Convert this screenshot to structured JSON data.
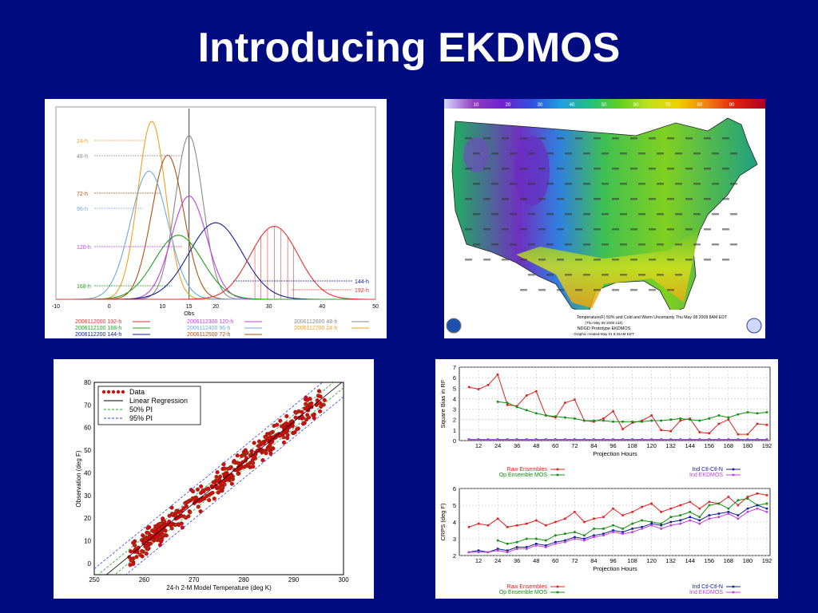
{
  "slide": {
    "title": "Introducing EKDMOS"
  },
  "colors": {
    "background": "#000c80",
    "title": "#ffffff"
  },
  "chart_data": [
    {
      "type": "line",
      "subtype": "probability-density-curves",
      "xlabel": "Obs",
      "xlim": [
        -10,
        50
      ],
      "xticks": [
        -10,
        0,
        10,
        15,
        20,
        30,
        40,
        50
      ],
      "observed_value": 15,
      "series": [
        {
          "label": "24-h",
          "legend": "2006112700 24-h",
          "color": "#f0a020",
          "mean": 8,
          "sd": 2.6,
          "peak": 1.0
        },
        {
          "label": "48-h",
          "legend": "2006112600 48-h",
          "color": "#888888",
          "mean": 15,
          "sd": 2.6,
          "peak": 0.92
        },
        {
          "label": "72-h",
          "legend": "2006112500 72-h",
          "color": "#b05010",
          "mean": 11,
          "sd": 3.0,
          "peak": 0.81
        },
        {
          "label": "96-h",
          "legend": "2006112400 96-h",
          "color": "#70a8e0",
          "mean": 7.5,
          "sd": 3.5,
          "peak": 0.72
        },
        {
          "label": "120-h",
          "legend": "2006112300 120-h",
          "color": "#c040e0",
          "mean": 15,
          "sd": 3.3,
          "peak": 0.58
        },
        {
          "label": "144-h",
          "legend": "2006112200 144-h",
          "color": "#102090",
          "mean": 20,
          "sd": 5.0,
          "peak": 0.43
        },
        {
          "label": "168-h",
          "legend": "2006112100 168-h",
          "color": "#20a020",
          "mean": 13,
          "sd": 4.5,
          "peak": 0.36
        },
        {
          "label": "192-h",
          "legend": "2006112000 192-h",
          "color": "#e03030",
          "mean": 31,
          "sd": 4.5,
          "peak": 0.41
        }
      ]
    },
    {
      "type": "heatmap",
      "subtype": "map",
      "colorbar_ticks": [
        "10",
        "20",
        "30",
        "40",
        "50",
        "60",
        "70",
        "80",
        "90"
      ],
      "caption_lines": [
        "Temperature(F) 50% and Cold and Warm Uncertainty Thu May 08 2008  8AM EDT",
        "(Thu May 08 2008 12Z)",
        "NDGD Prototype EKDMOS",
        "Graphic created-May 01  8:34AM EDT"
      ],
      "colors": [
        "#d8d8ff",
        "#9040c0",
        "#7020d0",
        "#3050e0",
        "#20a0e0",
        "#20c080",
        "#60d020",
        "#c0e020",
        "#f0d000",
        "#f08010",
        "#e02010",
        "#b00020"
      ]
    },
    {
      "type": "scatter",
      "xlabel": "24-h 2-M Model Temperature (deg K)",
      "ylabel": "Observation (deg F)",
      "xlim": [
        250,
        300
      ],
      "ylim": [
        -5,
        80
      ],
      "xticks": [
        250,
        260,
        270,
        280,
        290,
        300
      ],
      "yticks": [
        0,
        10,
        20,
        30,
        40,
        50,
        60,
        70,
        80
      ],
      "legend": [
        "Data",
        "Linear Regression",
        "50% PI",
        "95% PI"
      ],
      "legend_position": "top-left",
      "regression": {
        "slope": 1.8,
        "intercept": -459.4
      },
      "pi50_halfwidth": 3.0,
      "pi95_halfwidth": 7.0
    },
    {
      "type": "line",
      "xlabel": "Projection Hours",
      "ylabel": "Square Bias in RF",
      "ylim": [
        0,
        7
      ],
      "yticks": [
        0,
        1,
        2,
        3,
        4,
        5,
        6,
        7
      ],
      "xlim": [
        0,
        194
      ],
      "xticks": [
        12,
        24,
        36,
        48,
        60,
        72,
        84,
        96,
        108,
        120,
        132,
        144,
        156,
        168,
        180,
        192
      ],
      "legend": [
        "Raw Ensembles",
        "Op Ensemble MOS",
        "Ind Ctl-Ctl-N",
        "Ind EKDMOS"
      ],
      "series": [
        {
          "name": "Raw Ensembles",
          "color": "#e02020",
          "x": [
            6,
            12,
            18,
            24,
            30,
            36,
            42,
            48,
            54,
            60,
            66,
            72,
            78,
            84,
            90,
            96,
            102,
            108,
            114,
            120,
            126,
            132,
            138,
            144,
            150,
            156,
            162,
            168,
            174,
            180,
            186,
            192
          ],
          "values": [
            5.1,
            4.9,
            5.3,
            6.3,
            3.4,
            3.3,
            4.3,
            4.7,
            2.4,
            2.2,
            3.6,
            3.9,
            1.9,
            1.8,
            2.1,
            2.8,
            1.1,
            1.7,
            1.9,
            2.4,
            1.0,
            0.9,
            1.9,
            2.1,
            0.8,
            0.7,
            1.6,
            2.0,
            0.6,
            0.6,
            1.6,
            1.5
          ]
        },
        {
          "name": "Op Ensemble MOS",
          "color": "#109010",
          "x": [
            24,
            30,
            36,
            42,
            48,
            54,
            60,
            66,
            72,
            78,
            84,
            90,
            96,
            102,
            108,
            114,
            120,
            126,
            132,
            138,
            144,
            150,
            156,
            162,
            168,
            174,
            180,
            186,
            192
          ],
          "values": [
            3.7,
            3.6,
            3.2,
            2.9,
            2.6,
            2.4,
            2.3,
            2.2,
            2.1,
            1.9,
            1.9,
            1.9,
            1.8,
            1.8,
            1.8,
            1.8,
            1.9,
            1.9,
            2.0,
            2.1,
            2.0,
            1.9,
            2.1,
            2.4,
            2.2,
            2.5,
            2.7,
            2.6,
            2.7
          ]
        },
        {
          "name": "Ind Ctl-Ctl-N",
          "color": "#102090",
          "x": [
            6,
            12,
            18,
            24,
            30,
            36,
            42,
            48,
            54,
            60,
            66,
            72,
            78,
            84,
            90,
            96,
            102,
            108,
            114,
            120,
            126,
            132,
            138,
            144,
            150,
            156,
            162,
            168,
            174,
            180,
            186,
            192
          ],
          "values": [
            0.1,
            0.1,
            0.1,
            0.1,
            0.1,
            0.1,
            0.1,
            0.1,
            0.1,
            0.1,
            0.1,
            0.1,
            0.1,
            0.1,
            0.1,
            0.1,
            0.1,
            0.1,
            0.1,
            0.1,
            0.1,
            0.1,
            0.1,
            0.1,
            0.1,
            0.1,
            0.1,
            0.1,
            0.1,
            0.1,
            0.1,
            0.1
          ]
        },
        {
          "name": "Ind EKDMOS",
          "color": "#c040e0",
          "x": [
            6,
            12,
            18,
            24,
            30,
            36,
            42,
            48,
            54,
            60,
            66,
            72,
            78,
            84,
            90,
            96,
            102,
            108,
            114,
            120,
            126,
            132,
            138,
            144,
            150,
            156,
            162,
            168,
            174,
            180,
            186,
            192
          ],
          "values": [
            0.05,
            0.05,
            0.05,
            0.05,
            0.05,
            0.05,
            0.05,
            0.05,
            0.05,
            0.05,
            0.05,
            0.05,
            0.05,
            0.05,
            0.05,
            0.05,
            0.05,
            0.05,
            0.05,
            0.05,
            0.05,
            0.05,
            0.05,
            0.05,
            0.05,
            0.05,
            0.05,
            0.05,
            0.05,
            0.05,
            0.05,
            0.05
          ]
        }
      ]
    },
    {
      "type": "line",
      "xlabel": "Projection Hours",
      "ylabel": "CRPS (deg F)",
      "ylim": [
        2,
        6
      ],
      "yticks": [
        2,
        3,
        4,
        5,
        6
      ],
      "xlim": [
        0,
        194
      ],
      "xticks": [
        12,
        24,
        36,
        48,
        60,
        72,
        84,
        96,
        108,
        120,
        132,
        144,
        156,
        168,
        180,
        192
      ],
      "legend": [
        "Raw Ensembles",
        "Op Ensemble MOS",
        "Ind Ctl-Ctl-N",
        "Ind EKDMOS"
      ],
      "series": [
        {
          "name": "Raw Ensembles",
          "color": "#e02020",
          "x": [
            6,
            12,
            18,
            24,
            30,
            36,
            42,
            48,
            54,
            60,
            66,
            72,
            78,
            84,
            90,
            96,
            102,
            108,
            114,
            120,
            126,
            132,
            138,
            144,
            150,
            156,
            162,
            168,
            174,
            180,
            186,
            192
          ],
          "values": [
            3.7,
            3.9,
            3.8,
            4.2,
            3.7,
            3.8,
            3.9,
            4.1,
            3.8,
            4.0,
            4.2,
            4.6,
            4.0,
            4.2,
            4.3,
            4.8,
            4.4,
            4.6,
            4.9,
            5.1,
            4.6,
            4.8,
            5.0,
            5.2,
            4.8,
            5.2,
            5.1,
            5.5,
            5.0,
            5.5,
            5.7,
            5.6
          ]
        },
        {
          "name": "Op Ensemble MOS",
          "color": "#109010",
          "x": [
            24,
            30,
            36,
            42,
            48,
            54,
            60,
            66,
            72,
            78,
            84,
            90,
            96,
            102,
            108,
            114,
            120,
            126,
            132,
            138,
            144,
            150,
            156,
            162,
            168,
            174,
            180,
            186,
            192
          ],
          "values": [
            2.9,
            2.7,
            2.8,
            3.0,
            3.0,
            2.9,
            3.2,
            3.3,
            3.4,
            3.2,
            3.6,
            3.6,
            3.8,
            3.6,
            3.9,
            4.1,
            4.0,
            3.9,
            4.3,
            4.4,
            4.6,
            4.3,
            5.0,
            5.1,
            4.8,
            5.3,
            5.4,
            5.0,
            5.1
          ]
        },
        {
          "name": "Ind Ctl-Ctl-N",
          "color": "#102090",
          "x": [
            6,
            12,
            18,
            24,
            30,
            36,
            42,
            48,
            54,
            60,
            66,
            72,
            78,
            84,
            90,
            96,
            102,
            108,
            114,
            120,
            126,
            132,
            138,
            144,
            150,
            156,
            162,
            168,
            174,
            180,
            186,
            192
          ],
          "values": [
            2.2,
            2.3,
            2.2,
            2.4,
            2.3,
            2.5,
            2.5,
            2.7,
            2.6,
            2.8,
            2.9,
            3.1,
            3.0,
            3.2,
            3.3,
            3.5,
            3.4,
            3.6,
            3.7,
            3.9,
            3.8,
            4.0,
            4.1,
            4.3,
            4.1,
            4.4,
            4.5,
            4.6,
            4.4,
            4.8,
            5.0,
            4.8
          ]
        },
        {
          "name": "Ind EKDMOS",
          "color": "#c040e0",
          "x": [
            6,
            12,
            18,
            24,
            30,
            36,
            42,
            48,
            54,
            60,
            66,
            72,
            78,
            84,
            90,
            96,
            102,
            108,
            114,
            120,
            126,
            132,
            138,
            144,
            150,
            156,
            162,
            168,
            174,
            180,
            186,
            192
          ],
          "values": [
            2.2,
            2.2,
            2.2,
            2.3,
            2.2,
            2.4,
            2.4,
            2.6,
            2.5,
            2.7,
            2.8,
            3.0,
            2.9,
            3.1,
            3.2,
            3.4,
            3.3,
            3.4,
            3.6,
            3.8,
            3.6,
            3.8,
            3.9,
            4.1,
            3.9,
            4.2,
            4.3,
            4.5,
            4.2,
            4.6,
            4.8,
            4.6
          ]
        }
      ]
    }
  ]
}
